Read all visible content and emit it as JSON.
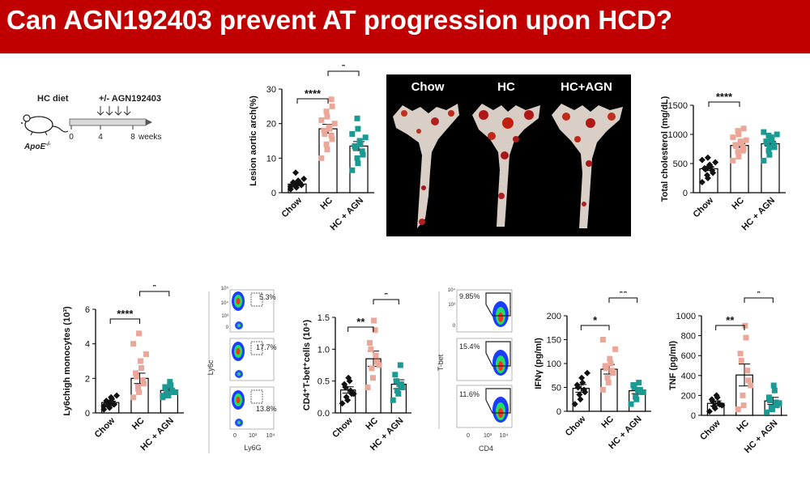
{
  "page": {
    "title": "Can AGN192403 prevent AT progression upon HCD?",
    "colors": {
      "banner": "#c00000",
      "chow": "#111111",
      "hc": "#eba79a",
      "agn": "#1a9a92"
    }
  },
  "schematic": {
    "diet_label": "HC diet",
    "treatment_label": "+/- AGN192403",
    "mouse_label": "ApoE",
    "mouse_label_sup": "-/-",
    "ticks": [
      "0",
      "4",
      "8"
    ],
    "unit": "weeks",
    "icon": "mouse-icon"
  },
  "photo": {
    "labels": [
      "Chow",
      "HC",
      "HC+AGN"
    ]
  },
  "flow_ly6c": {
    "gates": [
      "5.3%",
      "17.7%",
      "13.8%"
    ],
    "ylabel": "Ly6c",
    "xlabel": "Ly6G",
    "yticks": [
      "10⁵",
      "10⁴",
      "10³",
      "0"
    ],
    "xticks": [
      "0",
      "10³",
      "10⁴"
    ]
  },
  "flow_tbet": {
    "gates": [
      "9.85%",
      "15.4%",
      "11.6%"
    ],
    "ylabel": "T-bet",
    "xlabel": "CD4",
    "yticks": [
      "10⁴",
      "10³",
      "0"
    ],
    "xticks": [
      "0",
      "10³",
      "10⁴"
    ]
  },
  "chart_data": [
    {
      "id": "lesion",
      "type": "bar",
      "ylabel": "Lesion aortic arch(%)",
      "categories": [
        "Chow",
        "HC",
        "HC + AGN"
      ],
      "values": [
        2.5,
        18.5,
        13.5
      ],
      "errors": [
        0.5,
        1.3,
        1.3
      ],
      "ylim": [
        0,
        30
      ],
      "yticks": [
        "0",
        "10",
        "20",
        "30"
      ],
      "significance": [
        {
          "from": 0,
          "to": 1,
          "label": "****"
        },
        {
          "from": 1,
          "to": 2,
          "label": "*"
        }
      ],
      "points": [
        [
          1.0,
          1.5,
          2.0,
          2.2,
          2.5,
          2.8,
          3.0,
          3.2,
          3.5,
          4.0,
          1.8,
          2.6,
          5.8
        ],
        [
          10.0,
          12.5,
          14.0,
          15.5,
          16.5,
          17.0,
          18.0,
          18.5,
          19.0,
          20.0,
          21.0,
          22.0,
          23.5,
          25.0,
          27.0
        ],
        [
          6.5,
          8.5,
          10.0,
          11.0,
          12.0,
          13.0,
          13.5,
          14.0,
          15.0,
          16.0,
          17.0,
          18.5,
          21.5
        ]
      ]
    },
    {
      "id": "cholesterol",
      "type": "bar",
      "ylabel": "Total cholesterol (mg/dL)",
      "categories": [
        "Chow",
        "HC",
        "HC + AGN"
      ],
      "values": [
        410,
        810,
        840
      ],
      "errors": [
        30,
        35,
        40
      ],
      "ylim": [
        0,
        1500
      ],
      "yticks": [
        "0",
        "500",
        "1000",
        "1500"
      ],
      "significance": [
        {
          "from": 0,
          "to": 1,
          "label": "****"
        }
      ],
      "points": [
        [
          180,
          250,
          300,
          340,
          380,
          400,
          420,
          450,
          480,
          520,
          560,
          600,
          420
        ],
        [
          550,
          620,
          700,
          750,
          780,
          800,
          820,
          850,
          880,
          900,
          950,
          1000,
          1060,
          1100,
          720
        ],
        [
          550,
          650,
          720,
          780,
          820,
          850,
          880,
          900,
          950,
          1000,
          1040,
          780,
          980
        ]
      ]
    },
    {
      "id": "monocytes",
      "type": "bar",
      "ylabel": "Ly6chigh monocytes (10³)",
      "categories": [
        "Chow",
        "HC",
        "HC + AGN"
      ],
      "values": [
        0.6,
        2.0,
        1.3
      ],
      "errors": [
        0.08,
        0.3,
        0.12
      ],
      "ylim": [
        0,
        6
      ],
      "yticks": [
        "0",
        "2",
        "4",
        "6"
      ],
      "significance": [
        {
          "from": 0,
          "to": 1,
          "label": "****"
        },
        {
          "from": 1,
          "to": 2,
          "label": "*"
        }
      ],
      "points": [
        [
          0.2,
          0.3,
          0.4,
          0.5,
          0.5,
          0.6,
          0.7,
          0.8,
          0.9,
          1.0,
          0.4,
          0.6
        ],
        [
          0.9,
          1.2,
          1.5,
          1.7,
          1.9,
          2.1,
          2.3,
          2.6,
          3.0,
          3.4,
          4.0,
          4.6,
          1.4
        ],
        [
          0.9,
          1.0,
          1.1,
          1.2,
          1.3,
          1.4,
          1.5,
          1.6,
          1.8,
          1.2,
          1.0
        ]
      ]
    },
    {
      "id": "cd4tbet",
      "type": "bar",
      "ylabel": "CD4⁺T-bet⁺cells (10⁴)",
      "categories": [
        "Chow",
        "HC",
        "HC + AGN"
      ],
      "values": [
        0.36,
        0.85,
        0.45
      ],
      "errors": [
        0.05,
        0.12,
        0.07
      ],
      "ylim": [
        0,
        1.5
      ],
      "yticks": [
        "0.0",
        "0.5",
        "1.0",
        "1.5"
      ],
      "significance": [
        {
          "from": 0,
          "to": 1,
          "label": "**"
        },
        {
          "from": 1,
          "to": 2,
          "label": "*"
        }
      ],
      "points": [
        [
          0.15,
          0.2,
          0.25,
          0.3,
          0.35,
          0.4,
          0.45,
          0.5,
          0.55,
          0.3
        ],
        [
          0.4,
          0.55,
          0.7,
          0.8,
          0.9,
          1.0,
          1.1,
          1.3,
          1.45,
          0.75
        ],
        [
          0.2,
          0.3,
          0.35,
          0.4,
          0.45,
          0.5,
          0.6,
          0.75,
          0.45
        ]
      ]
    },
    {
      "id": "ifng",
      "type": "bar",
      "ylabel": "IFNγ (pg/ml)",
      "categories": [
        "Chow",
        "HC",
        "HC + AGN"
      ],
      "values": [
        48,
        88,
        43
      ],
      "errors": [
        8,
        10,
        6
      ],
      "ylim": [
        0,
        200
      ],
      "yticks": [
        "0",
        "50",
        "100",
        "150",
        "200"
      ],
      "significance": [
        {
          "from": 0,
          "to": 1,
          "label": "*"
        },
        {
          "from": 1,
          "to": 2,
          "label": "**"
        }
      ],
      "points": [
        [
          15,
          25,
          35,
          40,
          45,
          50,
          55,
          60,
          70,
          80
        ],
        [
          45,
          60,
          70,
          80,
          85,
          90,
          95,
          100,
          110,
          130,
          150
        ],
        [
          15,
          25,
          30,
          40,
          45,
          50,
          55,
          60,
          45,
          40
        ]
      ]
    },
    {
      "id": "tnf",
      "type": "bar",
      "ylabel": "TNF (pg/ml)",
      "categories": [
        "Chow",
        "HC",
        "HC + AGN"
      ],
      "values": [
        120,
        405,
        145
      ],
      "errors": [
        25,
        110,
        35
      ],
      "ylim": [
        0,
        1000
      ],
      "yticks": [
        "0",
        "200",
        "400",
        "600",
        "800",
        "1000"
      ],
      "significance": [
        {
          "from": 0,
          "to": 1,
          "label": "**"
        },
        {
          "from": 1,
          "to": 2,
          "label": "*"
        }
      ],
      "points": [
        [
          40,
          70,
          90,
          110,
          120,
          140,
          160,
          180,
          200,
          100
        ],
        [
          60,
          100,
          200,
          350,
          450,
          550,
          620,
          780,
          900,
          300
        ],
        [
          30,
          60,
          80,
          100,
          130,
          150,
          180,
          250,
          300,
          120
        ]
      ]
    }
  ]
}
